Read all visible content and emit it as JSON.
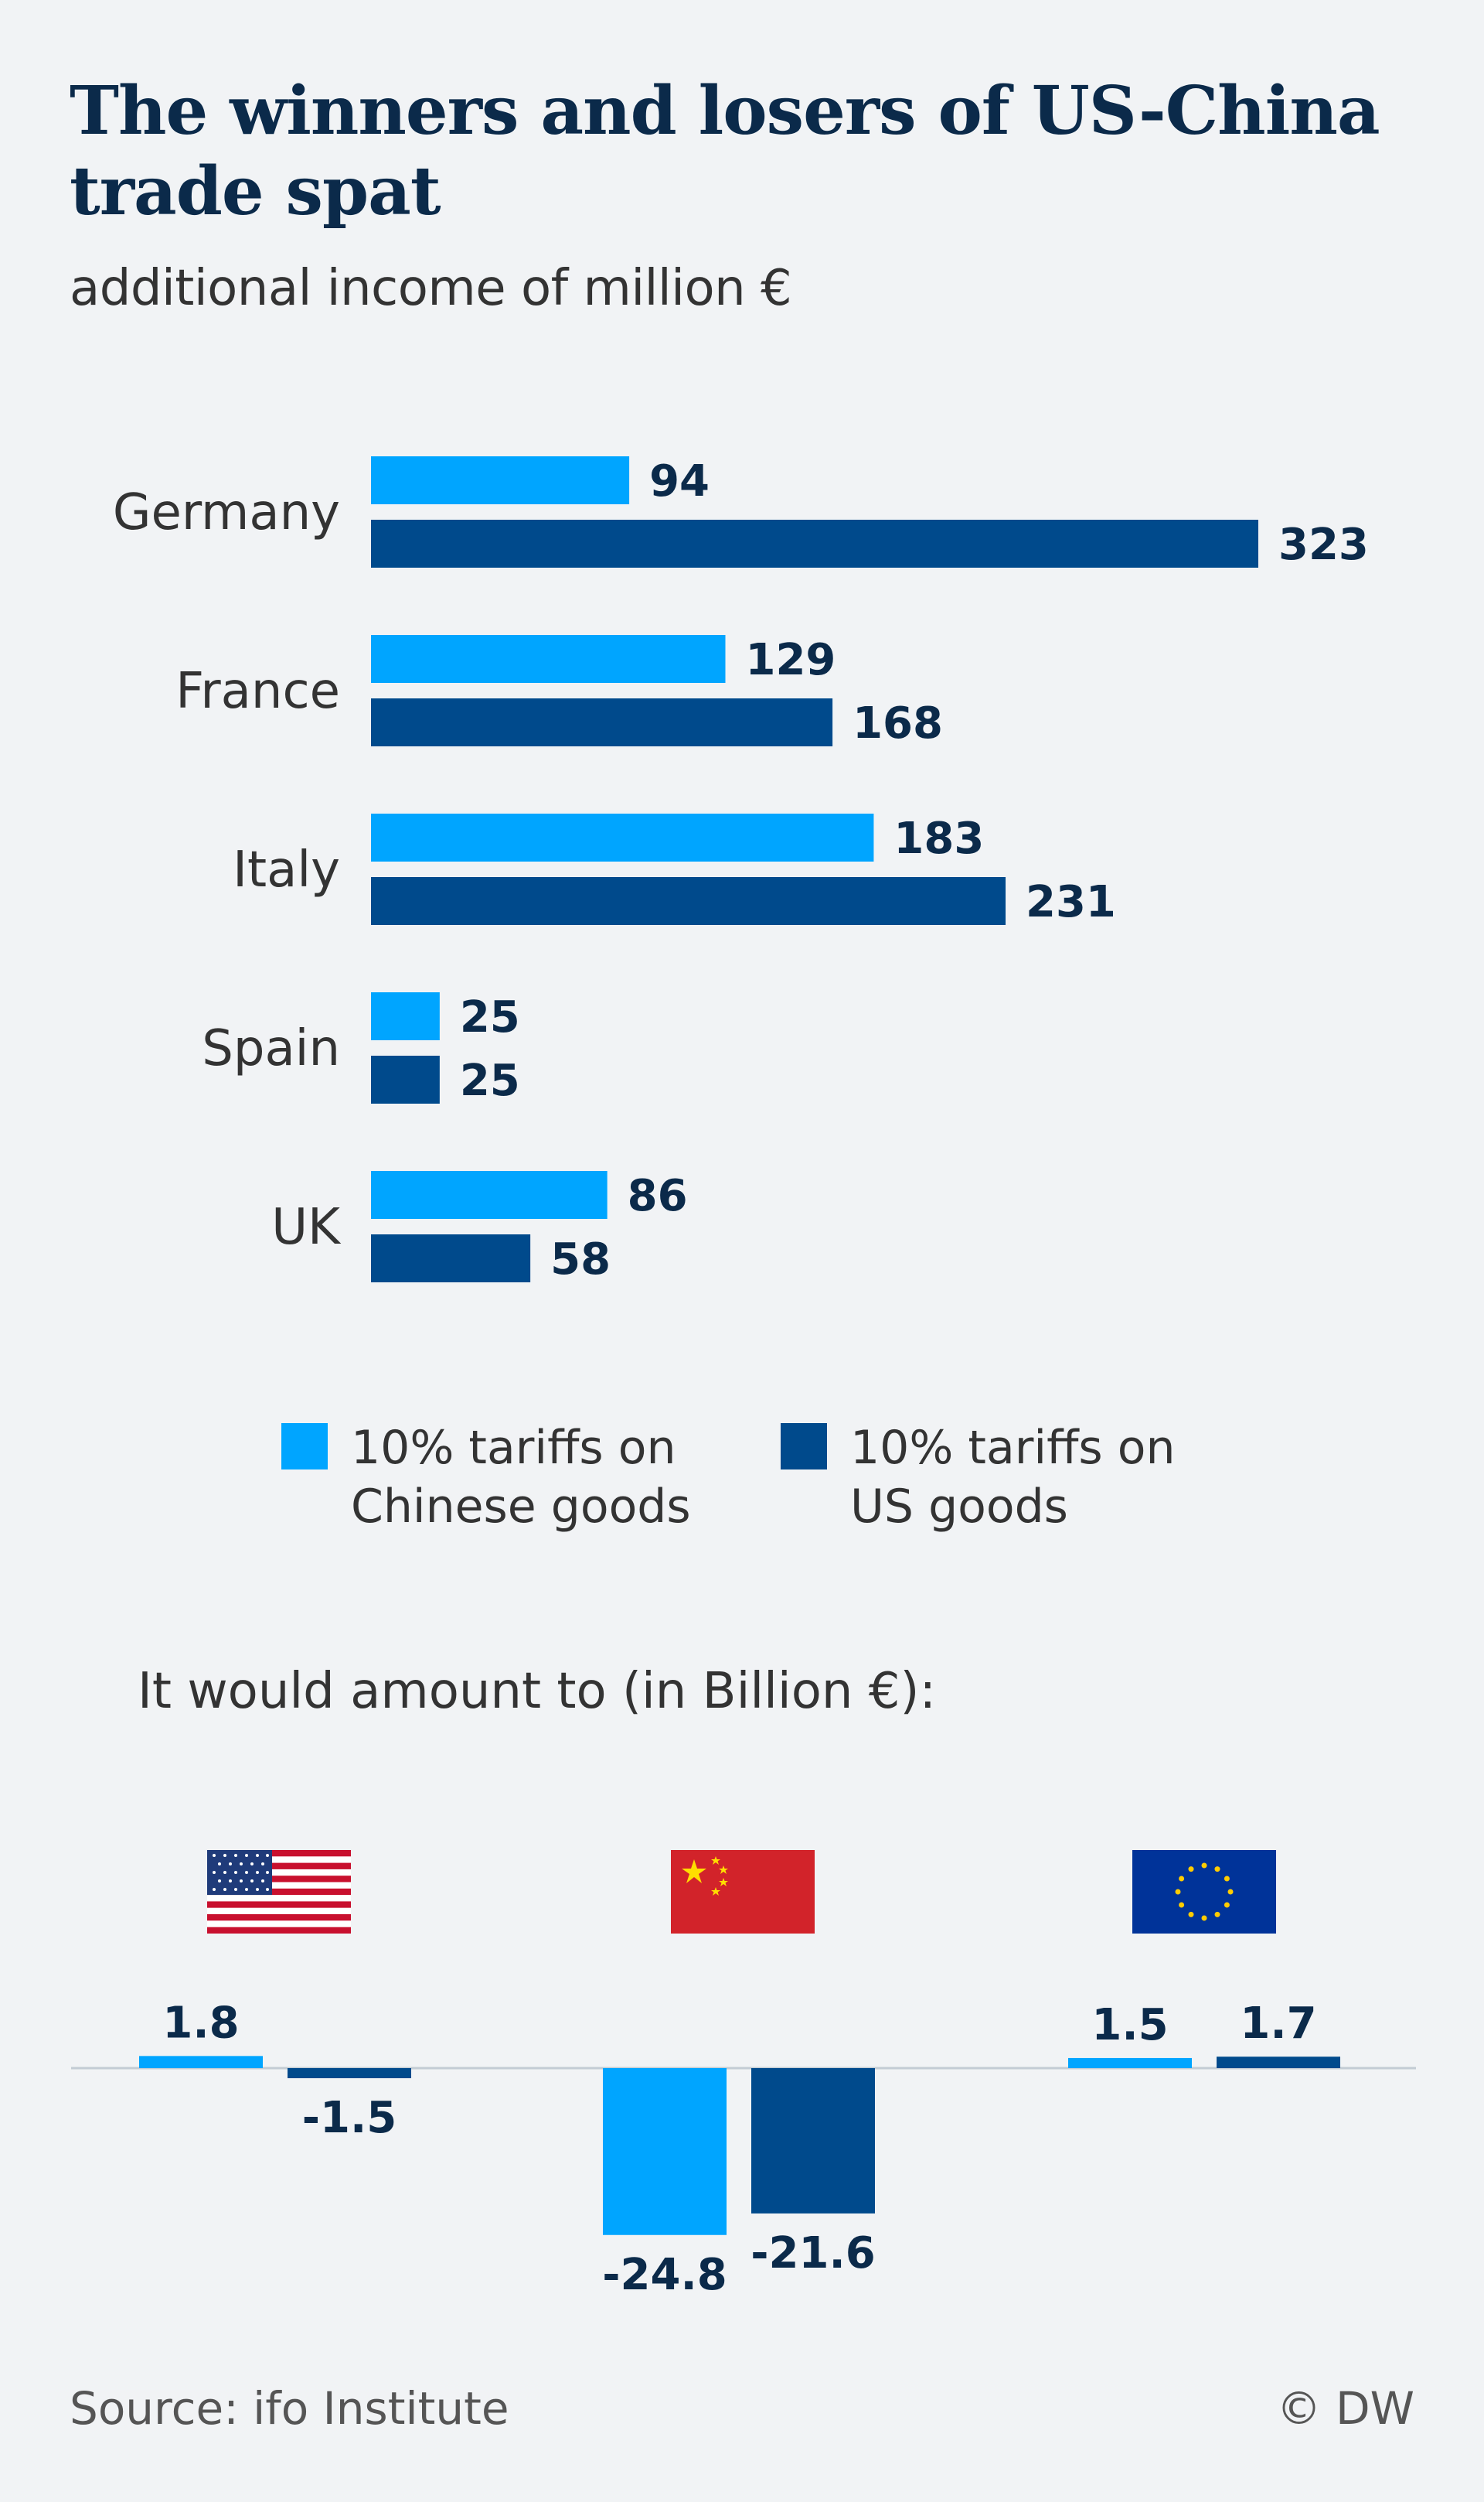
{
  "title": "The winners and losers of US-China trade spat",
  "subtitle": "additional income of million €",
  "section2_title": "It would amount to (in Billion €):",
  "source": "Source:  ifo Institute",
  "credit": "© DW",
  "colors": {
    "light": "#00a5ff",
    "dark": "#004a8c",
    "text": "#0b2a4a",
    "background": "#f1f3f5"
  },
  "legend": [
    {
      "label": "10% tariffs on Chinese goods",
      "color": "#00a5ff"
    },
    {
      "label": "10% tariffs on US goods",
      "color": "#004a8c"
    }
  ],
  "chart_data": [
    {
      "type": "bar",
      "orientation": "horizontal",
      "title": "The winners and losers of US-China trade spat",
      "subtitle": "additional income of million €",
      "categories": [
        "Germany",
        "France",
        "Italy",
        "Spain",
        "UK"
      ],
      "series": [
        {
          "name": "10% tariffs on Chinese goods",
          "values": [
            94,
            129,
            183,
            25,
            86
          ]
        },
        {
          "name": "10% tariffs on US goods",
          "values": [
            323,
            168,
            231,
            25,
            58
          ]
        }
      ],
      "xlim": [
        0,
        323
      ],
      "grid": false,
      "legend_position": "bottom"
    },
    {
      "type": "bar",
      "orientation": "vertical",
      "title": "It would amount to (in Billion €):",
      "categories": [
        "USA",
        "China",
        "EU"
      ],
      "category_icons": [
        "us-flag-icon",
        "china-flag-icon",
        "eu-flag-icon"
      ],
      "series": [
        {
          "name": "10% tariffs on Chinese goods",
          "values": [
            1.8,
            -24.8,
            1.5
          ]
        },
        {
          "name": "10% tariffs on US goods",
          "values": [
            -1.5,
            -21.6,
            1.7
          ]
        }
      ],
      "ylim": [
        -24.8,
        1.8
      ],
      "grid": false
    }
  ]
}
